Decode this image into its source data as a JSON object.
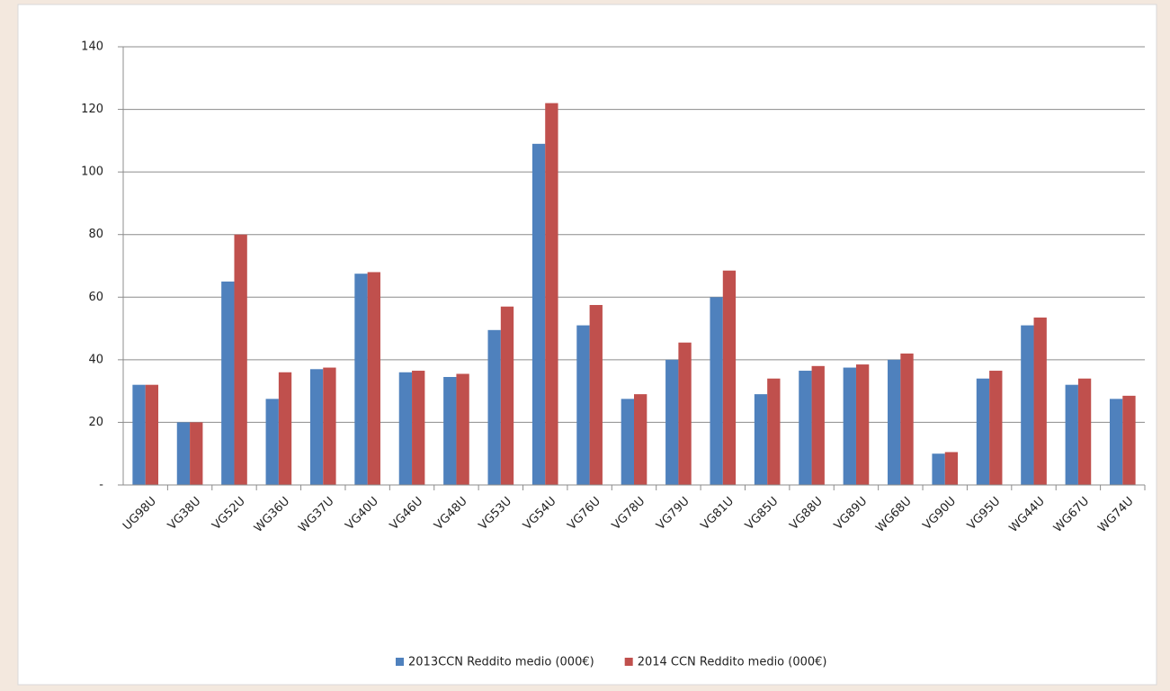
{
  "chart_data": {
    "type": "bar",
    "categories": [
      "UG98U",
      "VG38U",
      "VG52U",
      "WG36U",
      "WG37U",
      "VG40U",
      "VG46U",
      "VG48U",
      "VG53U",
      "VG54U",
      "VG76U",
      "VG78U",
      "VG79U",
      "VG81U",
      "VG85U",
      "VG88U",
      "VG89U",
      "WG68U",
      "VG90U",
      "VG95U",
      "WG44U",
      "WG67U",
      "WG74U"
    ],
    "series": [
      {
        "name": "2013CCN Reddito medio (000€)",
        "color": "#4f81bd",
        "values": [
          32,
          20,
          65,
          27.5,
          37,
          67.5,
          36,
          34.5,
          49.5,
          109,
          51,
          27.5,
          40,
          60,
          29,
          36.5,
          37.5,
          40,
          10,
          34,
          51,
          32,
          27.5
        ]
      },
      {
        "name": "2014 CCN Reddito medio (000€)",
        "color": "#c0504d",
        "values": [
          32,
          20,
          80,
          36,
          37.5,
          68,
          36.5,
          35.5,
          57,
          122,
          57.5,
          29,
          45.5,
          68.5,
          34,
          38,
          38.5,
          42,
          10.5,
          36.5,
          53.5,
          34,
          28.5
        ]
      }
    ],
    "ylim": [
      0,
      140
    ],
    "yticks": [
      {
        "value": 0,
        "label": "-"
      },
      20,
      40,
      60,
      80,
      100,
      120,
      140
    ],
    "grid": true
  }
}
